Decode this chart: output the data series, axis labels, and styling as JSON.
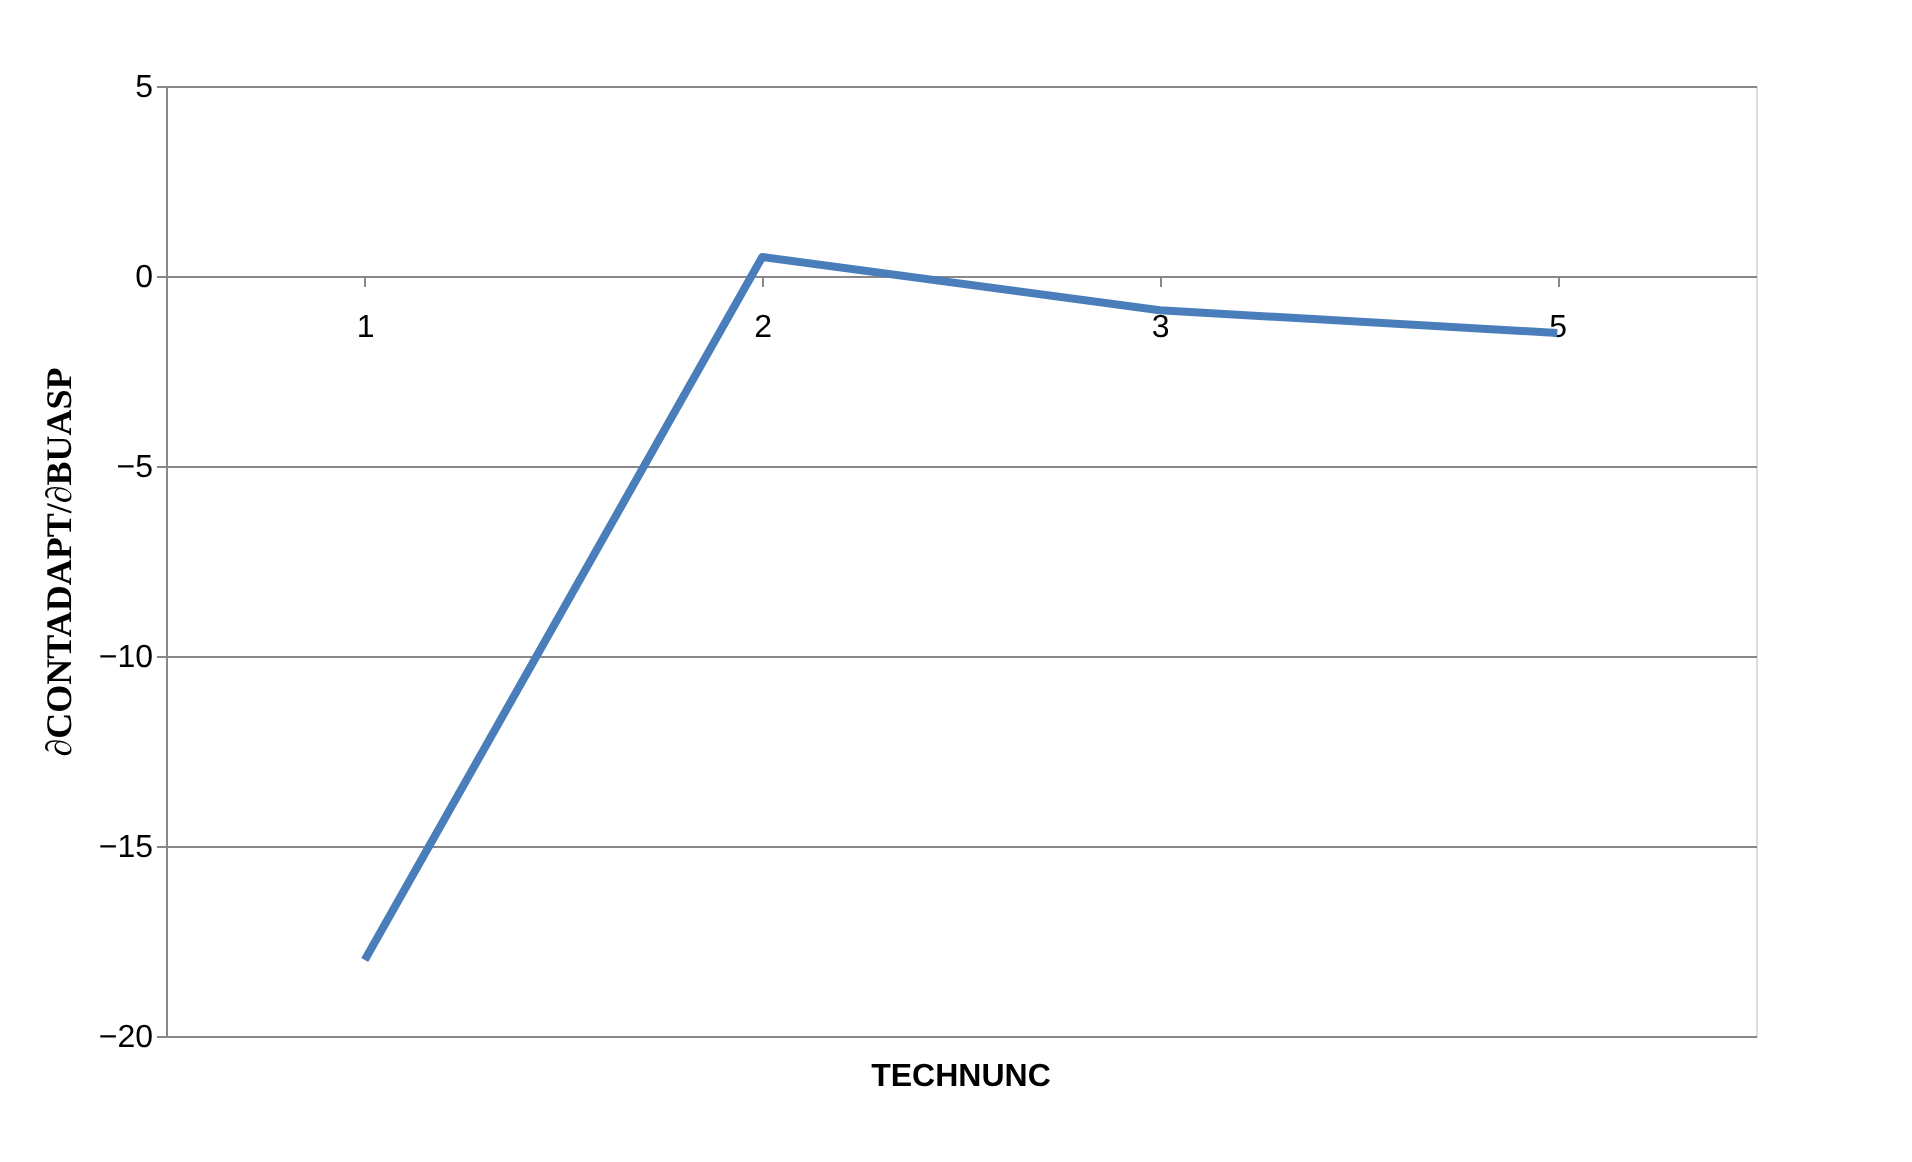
{
  "chart_data": {
    "type": "line",
    "xlabel": "TECHNUNC",
    "ylabel": "∂CONTADAPT/∂BUASP",
    "categories": [
      "1",
      "2",
      "3",
      "5"
    ],
    "series": [
      {
        "color": "#4a7ebb",
        "values": [
          -18,
          0.5,
          -0.9,
          -1.5
        ]
      }
    ],
    "ylim": [
      -20,
      5
    ],
    "yticks": [
      -20,
      -15,
      -10,
      -5,
      0,
      5
    ],
    "grid": "y",
    "marker": "none",
    "line_style": "solid"
  }
}
